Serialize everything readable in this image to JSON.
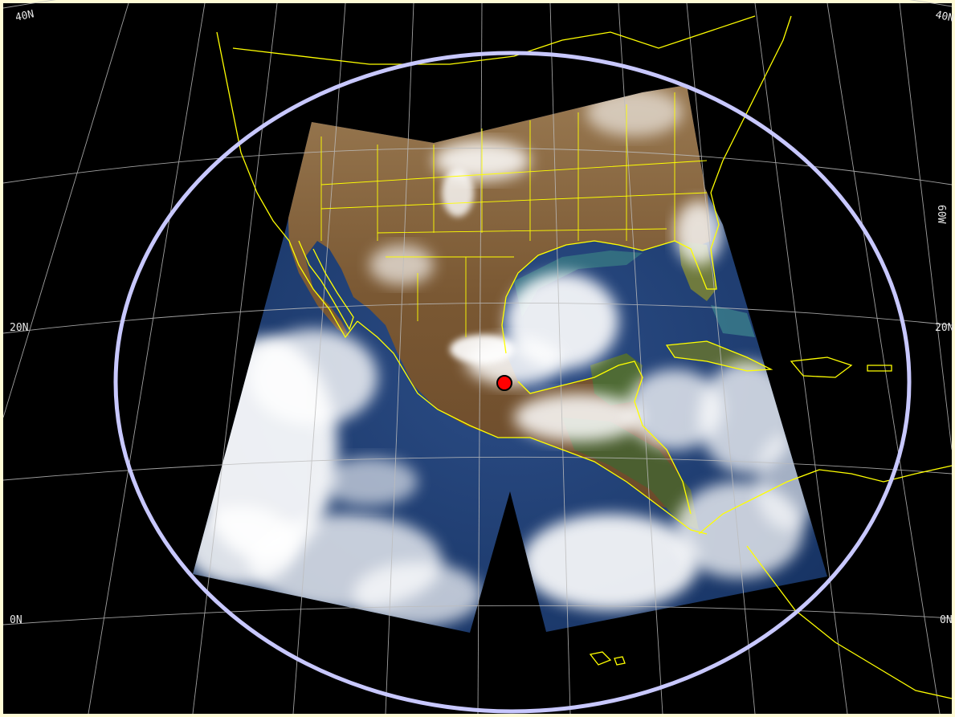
{
  "map": {
    "latitude_labels": {
      "lat_40n": "40N",
      "lat_20n_left": "20N",
      "lat_20n_right": "20N",
      "lat_0n_left": "0N",
      "lat_0n_right": "0N"
    },
    "longitude_labels": {
      "lon_60w": "60W"
    },
    "colors": {
      "background_space": "#000000",
      "frame_border": "#fffbd6",
      "coastline": "#ffff00",
      "graticule": "#bdbdbd",
      "coverage_ellipse": "#c8c8ff",
      "station_marker": "#ff0000",
      "ocean": "#1d3e7a",
      "land": "#7b5a33",
      "cloud": "#ffffff"
    },
    "icons": {
      "station_marker": "red-dot-marker"
    }
  }
}
